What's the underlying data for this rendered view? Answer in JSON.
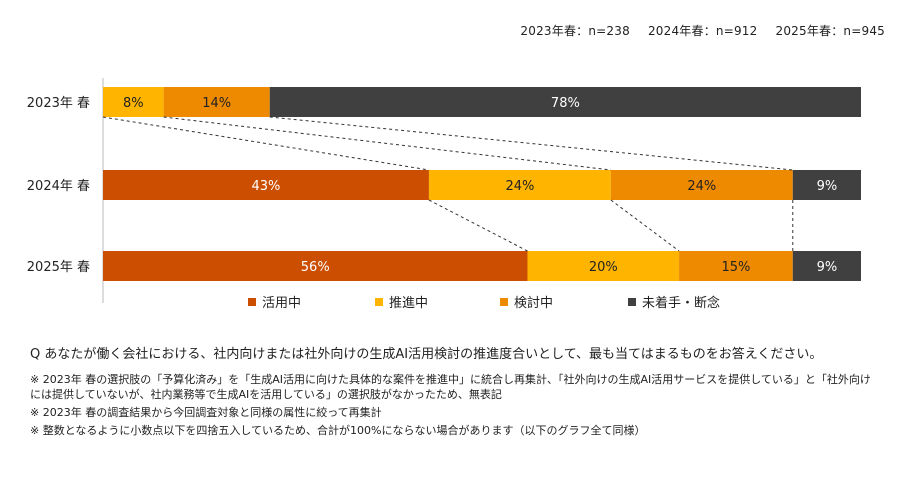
{
  "sample_sizes": [
    "2023年春：n=238",
    "2024年春：n=912",
    "2025年春：n=945"
  ],
  "chart_data": {
    "type": "bar",
    "orientation": "horizontal-stacked-100",
    "categories": [
      "2023年 春",
      "2024年 春",
      "2025年 春"
    ],
    "series": [
      {
        "name": "活用中",
        "color": "#cc4e00",
        "values": [
          0,
          43,
          56
        ]
      },
      {
        "name": "推進中",
        "color": "#ffb400",
        "values": [
          8,
          24,
          20
        ]
      },
      {
        "name": "検討中",
        "color": "#ee8a00",
        "values": [
          14,
          24,
          15
        ]
      },
      {
        "name": "未着手・断念",
        "color": "#404040",
        "values": [
          78,
          9,
          9
        ]
      }
    ],
    "legend_position": "bottom",
    "value_suffix": "%"
  },
  "question": "Q あなたが働く会社における、社内向けまたは社外向けの生成AI活用検討の推進度合いとして、最も当てはまるものをお答えください。",
  "notes": [
    "※ 2023年 春の選択肢の「予算化済み」を「生成AI活用に向けた具体的な案件を推進中」に統合し再集計、「社外向けの生成AI活用サービスを提供している」と「社外向けには提供していないが、社内業務等で生成AIを活用している」の選択肢がなかったため、無表記",
    "※ 2023年 春の調査結果から今回調査対象と同様の属性に絞って再集計",
    "※ 整数となるように小数点以下を四捨五入しているため、合計が100%にならない場合があります（以下のグラフ全て同様）"
  ]
}
